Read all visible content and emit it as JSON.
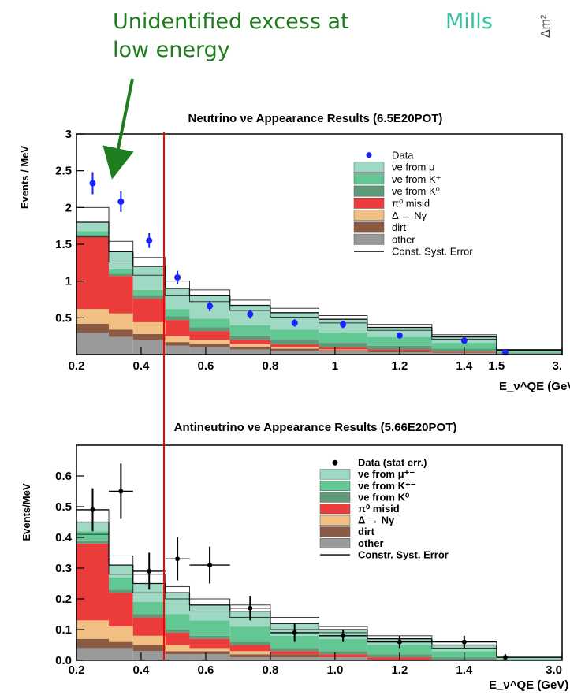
{
  "annotation": {
    "line1": "Unidentified excess at",
    "line2": "low energy",
    "mills": "Mills",
    "corner": "Δm²"
  },
  "colors": {
    "annotation": "#1e7d1e",
    "mills": "#36c2a0",
    "cut_line": "#ff0000",
    "nue_mu": "#9fd9c4",
    "nue_kplus": "#63c794",
    "nue_k0": "#5e9a78",
    "pi0": "#ec3b3b",
    "delta": "#f2c082",
    "dirt": "#8b5a42",
    "other": "#9a9a9a",
    "data_top": "#1a22ff",
    "data_bottom": "#000000"
  },
  "chart_data": [
    {
      "type": "bar",
      "stacked": true,
      "title": "Neutrino νe Appearance Results (6.5E20POT)",
      "ylabel": "Events / MeV",
      "xlabel": "E_ν^QE (GeV)",
      "ylim": [
        0,
        3
      ],
      "xlim": [
        0.2,
        3.0
      ],
      "legend_position": "top-right",
      "xticks": [
        "0.2",
        "0.4",
        "0.6",
        "0.8",
        "1",
        "1.2",
        "1.4",
        "1.5",
        "3."
      ],
      "yticks": [
        "0.5",
        "1",
        "1.5",
        "2",
        "2.5",
        "3"
      ],
      "bin_edges": [
        0.2,
        0.3,
        0.375,
        0.475,
        0.55,
        0.675,
        0.8,
        0.95,
        1.1,
        1.3,
        1.5,
        3.0
      ],
      "series": [
        {
          "name": "other",
          "key": "other",
          "values": [
            0.3,
            0.24,
            0.2,
            0.12,
            0.1,
            0.07,
            0.05,
            0.04,
            0.03,
            0.02,
            0.01
          ]
        },
        {
          "name": "dirt",
          "key": "dirt",
          "values": [
            0.12,
            0.1,
            0.08,
            0.05,
            0.05,
            0.04,
            0.03,
            0.02,
            0.02,
            0.01,
            0.0
          ]
        },
        {
          "name": "Δ → Nγ",
          "key": "delta",
          "values": [
            0.2,
            0.22,
            0.16,
            0.08,
            0.05,
            0.03,
            0.02,
            0.01,
            0.0,
            0.0,
            0.0
          ]
        },
        {
          "name": "π⁰ misid",
          "key": "pi0",
          "values": [
            0.98,
            0.51,
            0.32,
            0.22,
            0.12,
            0.06,
            0.04,
            0.03,
            0.02,
            0.01,
            0.0
          ]
        },
        {
          "name": "νe from K⁰",
          "key": "nue_k0",
          "values": [
            0.03,
            0.03,
            0.04,
            0.05,
            0.05,
            0.06,
            0.06,
            0.06,
            0.05,
            0.04,
            0.01
          ]
        },
        {
          "name": "νe from K⁺",
          "key": "nue_kplus",
          "values": [
            0.05,
            0.06,
            0.08,
            0.1,
            0.12,
            0.14,
            0.14,
            0.14,
            0.12,
            0.08,
            0.02
          ]
        },
        {
          "name": "νe from μ",
          "key": "nue_mu",
          "values": [
            0.12,
            0.24,
            0.32,
            0.28,
            0.31,
            0.27,
            0.23,
            0.18,
            0.13,
            0.08,
            0.02
          ]
        }
      ],
      "syst_error": [
        0.2,
        0.14,
        0.12,
        0.1,
        0.08,
        0.07,
        0.06,
        0.05,
        0.04,
        0.03,
        0.01
      ],
      "data_series_name": "Data",
      "data": {
        "x": [
          0.25,
          0.3375,
          0.425,
          0.5125,
          0.6125,
          0.7375,
          0.875,
          1.025,
          1.2,
          1.4,
          1.7
        ],
        "y": [
          2.33,
          2.08,
          1.55,
          1.05,
          0.66,
          0.55,
          0.43,
          0.41,
          0.26,
          0.19,
          0.03
        ],
        "err": [
          0.15,
          0.14,
          0.1,
          0.09,
          0.07,
          0.06,
          0.05,
          0.05,
          0.04,
          0.03,
          0.02
        ]
      }
    },
    {
      "type": "bar",
      "stacked": true,
      "title": "Antineutrino νe Appearance Results (5.66E20POT)",
      "ylabel": "Events/MeV",
      "xlabel": "E_ν^QE (GeV)",
      "ylim": [
        0,
        0.7
      ],
      "xlim": [
        0.2,
        3.0
      ],
      "legend_position": "top-right",
      "xticks": [
        "0.2",
        "0.4",
        "0.6",
        "0.8",
        "1.0",
        "1.2",
        "1.4",
        "3.0"
      ],
      "yticks": [
        "0.0",
        "0.1",
        "0.2",
        "0.3",
        "0.4",
        "0.5",
        "0.6"
      ],
      "bin_edges": [
        0.2,
        0.3,
        0.375,
        0.475,
        0.55,
        0.675,
        0.8,
        0.95,
        1.1,
        1.3,
        1.5,
        3.0
      ],
      "series": [
        {
          "name": "other",
          "key": "other",
          "values": [
            0.04,
            0.04,
            0.03,
            0.02,
            0.02,
            0.01,
            0.01,
            0.01,
            0.0,
            0.0,
            0.0
          ]
        },
        {
          "name": "dirt",
          "key": "dirt",
          "values": [
            0.03,
            0.02,
            0.02,
            0.01,
            0.01,
            0.01,
            0.01,
            0.0,
            0.0,
            0.0,
            0.0
          ]
        },
        {
          "name": "Δ → Nγ",
          "key": "delta",
          "values": [
            0.06,
            0.05,
            0.03,
            0.02,
            0.01,
            0.01,
            0.0,
            0.0,
            0.0,
            0.0,
            0.0
          ]
        },
        {
          "name": "π⁰ misid",
          "key": "pi0",
          "values": [
            0.25,
            0.11,
            0.06,
            0.04,
            0.03,
            0.02,
            0.01,
            0.01,
            0.01,
            0.0,
            0.0
          ]
        },
        {
          "name": "νe from K⁰",
          "key": "nue_k0",
          "values": [
            0.01,
            0.01,
            0.01,
            0.01,
            0.01,
            0.01,
            0.01,
            0.01,
            0.01,
            0.01,
            0.0
          ]
        },
        {
          "name": "νe from K⁺⁻",
          "key": "nue_kplus",
          "values": [
            0.03,
            0.04,
            0.04,
            0.05,
            0.05,
            0.05,
            0.04,
            0.04,
            0.03,
            0.02,
            0.005
          ]
        },
        {
          "name": "νe from μ⁺⁻",
          "key": "nue_mu",
          "values": [
            0.03,
            0.04,
            0.06,
            0.07,
            0.05,
            0.05,
            0.04,
            0.03,
            0.02,
            0.02,
            0.005
          ]
        }
      ],
      "syst_error": [
        0.04,
        0.03,
        0.03,
        0.02,
        0.02,
        0.02,
        0.02,
        0.01,
        0.01,
        0.01,
        0.0
      ],
      "data_series_name": "Data (stat err.)",
      "data": {
        "x": [
          0.25,
          0.3375,
          0.425,
          0.5125,
          0.6125,
          0.7375,
          0.875,
          1.025,
          1.2,
          1.4,
          1.7
        ],
        "y": [
          0.49,
          0.55,
          0.29,
          0.33,
          0.31,
          0.17,
          0.09,
          0.08,
          0.06,
          0.06,
          0.01
        ],
        "err": [
          0.07,
          0.09,
          0.06,
          0.07,
          0.06,
          0.04,
          0.03,
          0.02,
          0.02,
          0.02,
          0.01
        ]
      }
    }
  ],
  "legends": [
    {
      "entries": [
        {
          "label": "Data",
          "key": "data"
        },
        {
          "label": "νe from μ",
          "key": "nue_mu"
        },
        {
          "label": "νe from K⁺",
          "key": "nue_kplus"
        },
        {
          "label": "νe from K⁰",
          "key": "nue_k0"
        },
        {
          "label": "π⁰ misid",
          "key": "pi0"
        },
        {
          "label": "Δ → Nγ",
          "key": "delta"
        },
        {
          "label": "dirt",
          "key": "dirt"
        },
        {
          "label": "other",
          "key": "other"
        },
        {
          "label": "Const. Syst. Error",
          "key": "syst"
        }
      ]
    },
    {
      "entries": [
        {
          "label": "Data (stat err.)",
          "key": "data"
        },
        {
          "label": "νe from μ⁺⁻",
          "key": "nue_mu"
        },
        {
          "label": "νe from K⁺⁻",
          "key": "nue_kplus"
        },
        {
          "label": "νe from K⁰",
          "key": "nue_k0"
        },
        {
          "label": "π⁰ misid",
          "key": "pi0"
        },
        {
          "label": "Δ → Nγ",
          "key": "delta"
        },
        {
          "label": "dirt",
          "key": "dirt"
        },
        {
          "label": "other",
          "key": "other"
        },
        {
          "label": "Constr. Syst. Error",
          "key": "syst"
        }
      ]
    }
  ]
}
